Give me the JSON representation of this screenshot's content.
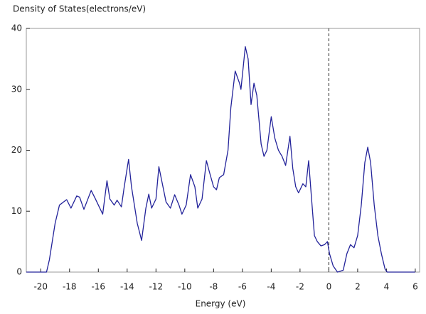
{
  "chart_data": {
    "type": "line",
    "title": "Density of States(electrons/eV)",
    "x_label": "Energy (eV)",
    "x": [
      -21,
      -20,
      -19.6,
      -19.4,
      -19.0,
      -18.7,
      -18.2,
      -17.9,
      -17.5,
      -17.3,
      -17.0,
      -16.5,
      -16.2,
      -16.0,
      -15.7,
      -15.4,
      -15.2,
      -14.9,
      -14.7,
      -14.4,
      -14.2,
      -13.9,
      -13.7,
      -13.3,
      -13.0,
      -12.7,
      -12.5,
      -12.3,
      -12.0,
      -11.8,
      -11.6,
      -11.3,
      -11.0,
      -10.7,
      -10.4,
      -10.2,
      -9.9,
      -9.6,
      -9.3,
      -9.1,
      -8.8,
      -8.5,
      -8.3,
      -8.0,
      -7.8,
      -7.6,
      -7.3,
      -7.0,
      -6.8,
      -6.5,
      -6.2,
      -6.1,
      -5.8,
      -5.6,
      -5.4,
      -5.2,
      -5.0,
      -4.7,
      -4.5,
      -4.3,
      -4.0,
      -3.75,
      -3.5,
      -3.25,
      -3.0,
      -2.7,
      -2.5,
      -2.3,
      -2.1,
      -1.8,
      -1.6,
      -1.4,
      -1.2,
      -1.0,
      -0.8,
      -0.55,
      -0.3,
      -0.1,
      0.05,
      0.3,
      0.6,
      1.0,
      1.25,
      1.5,
      1.75,
      2.0,
      2.25,
      2.5,
      2.7,
      2.9,
      3.15,
      3.4,
      3.65,
      3.9,
      4.05,
      5,
      6
    ],
    "series": [
      {
        "name": "DOS",
        "color": "#23239a",
        "values": [
          0,
          0,
          0,
          2,
          8,
          11,
          11.9,
          10.5,
          12.5,
          12.3,
          10.3,
          13.4,
          12,
          11,
          9.5,
          15,
          12,
          11,
          11.8,
          10.7,
          14,
          18.5,
          14,
          8,
          5.2,
          10.5,
          12.8,
          10.5,
          12,
          17.3,
          15,
          11.5,
          10.5,
          12.7,
          11,
          9.5,
          11,
          16,
          14,
          10.5,
          12,
          18.3,
          16.5,
          14,
          13.5,
          15.5,
          16,
          20,
          27,
          33,
          31,
          30,
          37,
          35,
          27.5,
          31,
          29,
          21,
          19,
          20,
          25.5,
          22,
          20,
          19,
          17.5,
          22.3,
          17,
          14,
          13,
          14.5,
          14,
          18.3,
          12,
          6,
          5,
          4.3,
          4.5,
          5,
          3,
          1,
          0,
          0.3,
          3,
          4.5,
          4,
          6,
          11,
          18,
          20.5,
          18,
          11,
          6,
          3,
          0.5,
          0,
          0,
          0
        ]
      }
    ],
    "xlim": [
      -21,
      6.3
    ],
    "ylim": [
      0,
      40
    ],
    "xticks": [
      -20,
      -18,
      -16,
      -14,
      -12,
      -10,
      -8,
      -6,
      -4,
      -2,
      0,
      2,
      4,
      6
    ],
    "yticks": [
      0,
      10,
      20,
      30,
      40
    ],
    "fermi_level": 0
  }
}
